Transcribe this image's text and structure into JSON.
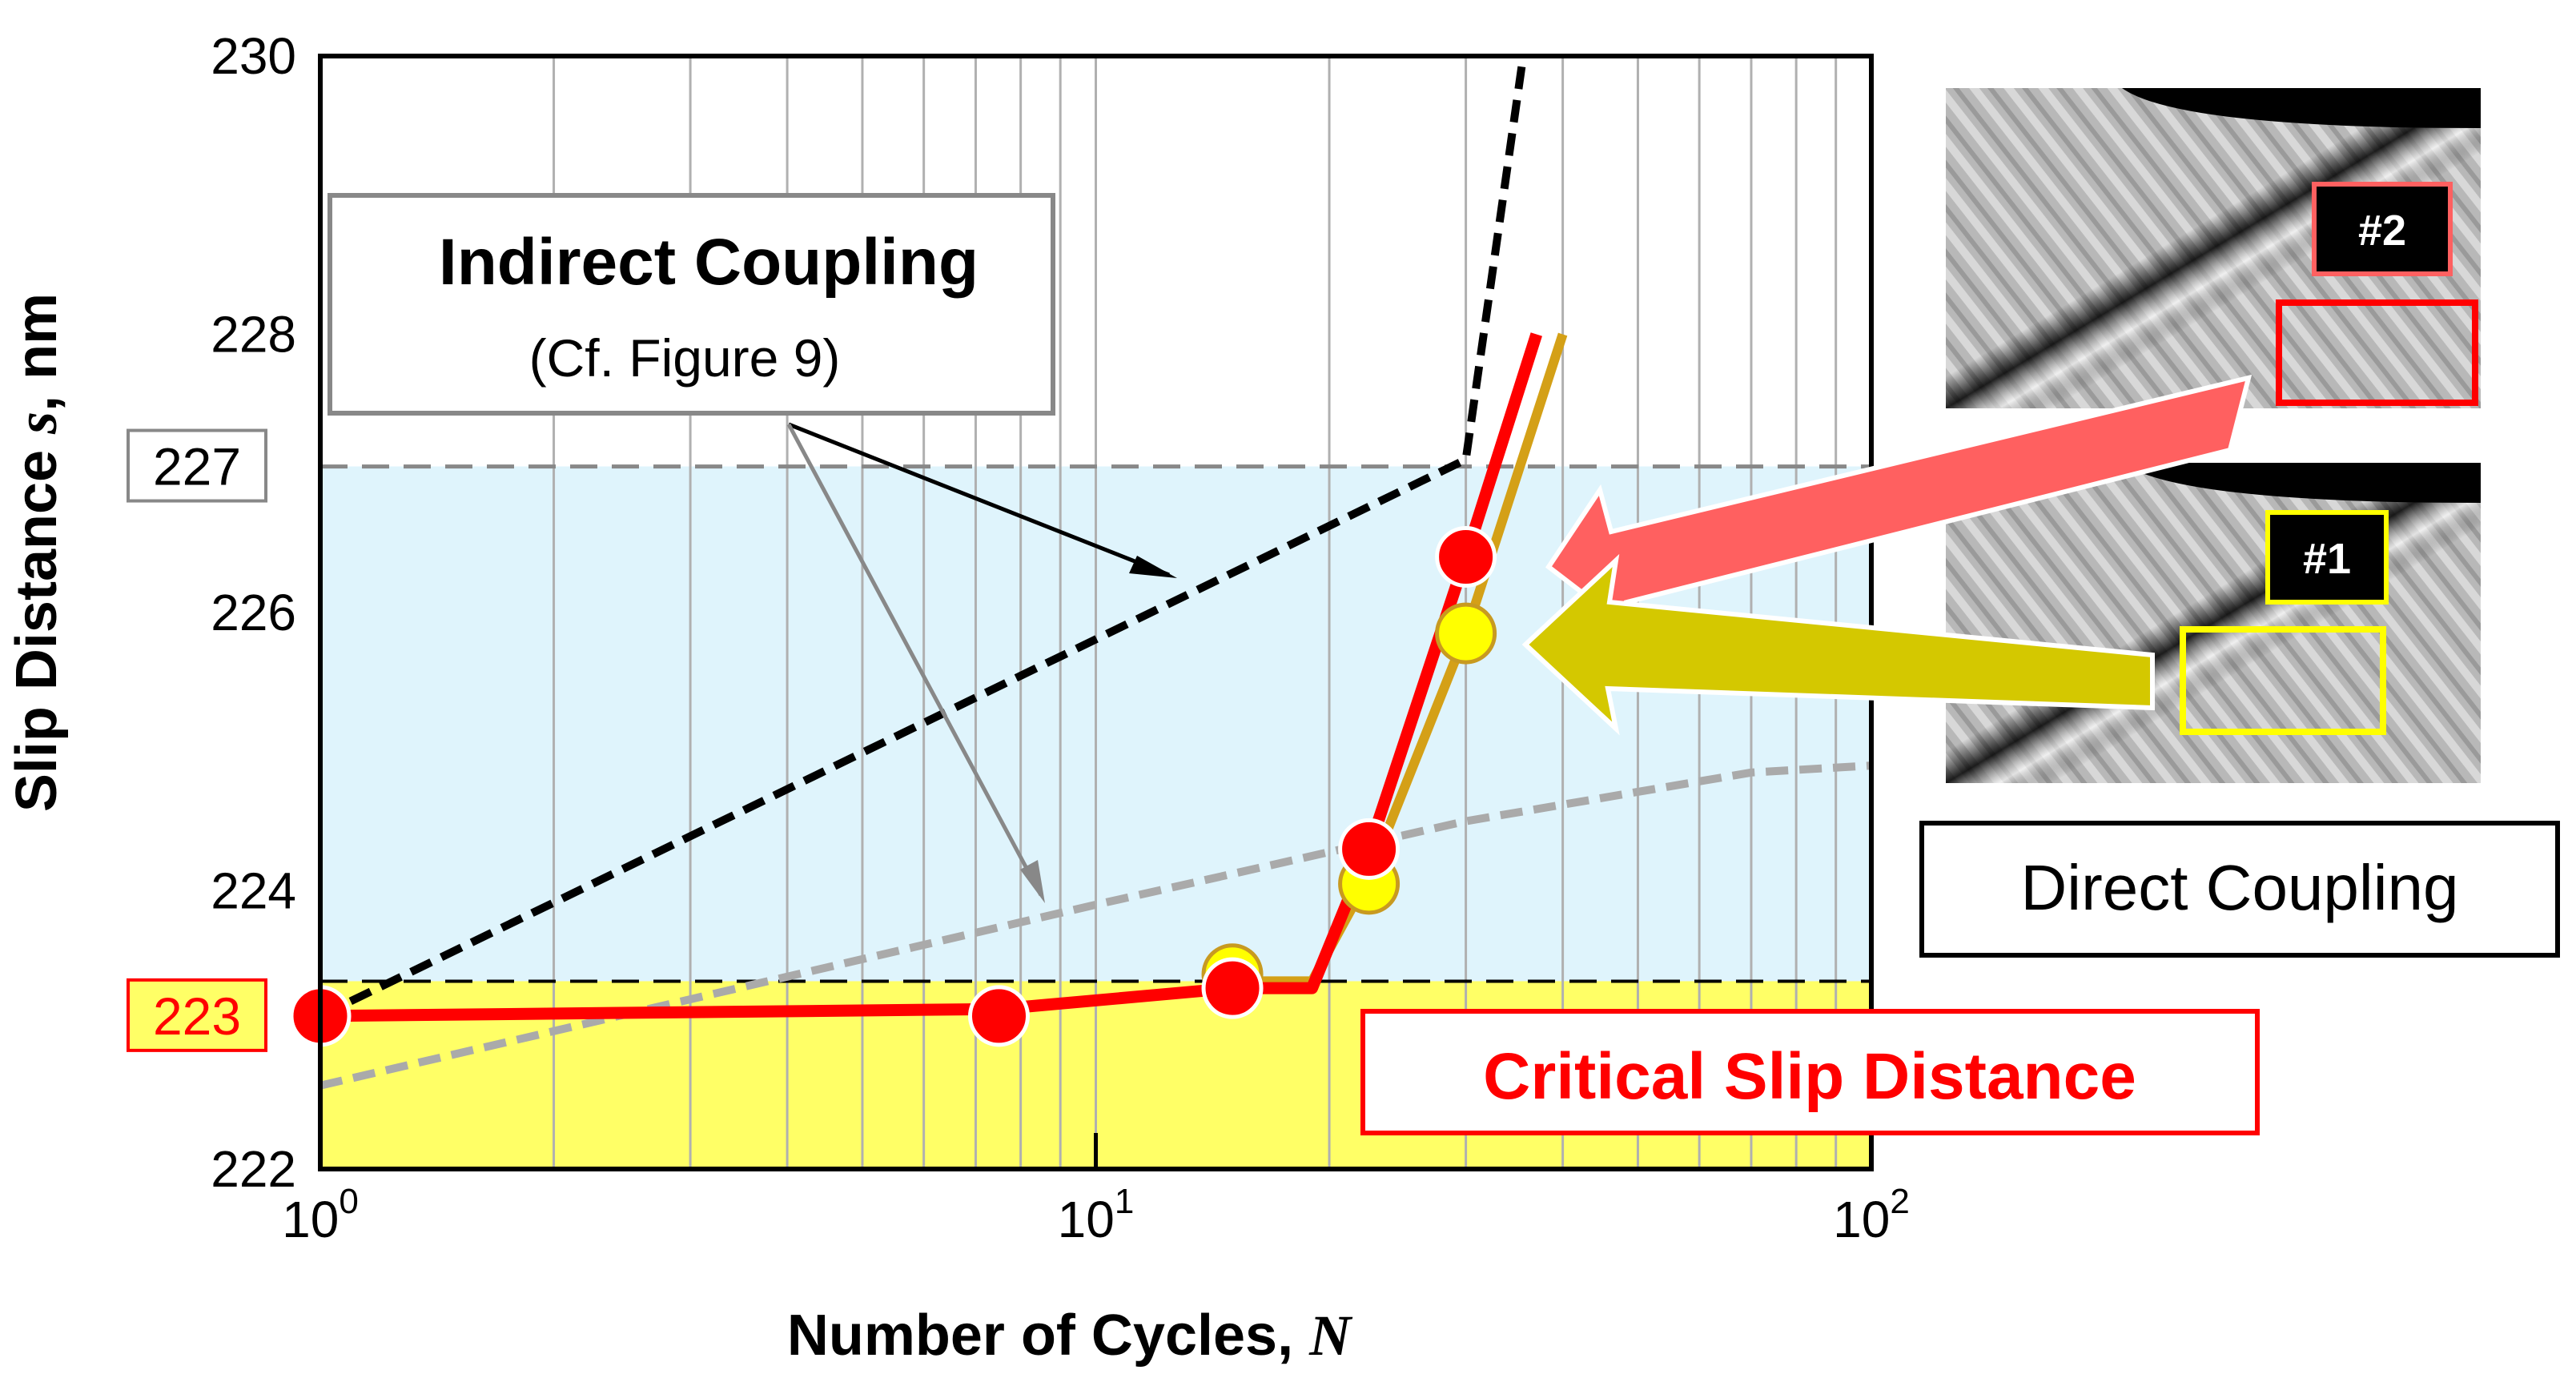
{
  "chart_data": {
    "type": "line",
    "xlabel_text": "Number of Cycles, ",
    "xlabel_var": "N",
    "ylabel_text": "Slip Distance ",
    "ylabel_var": "s",
    "ylabel_unit": ", nm",
    "x_scale": "log",
    "xlim": [
      1,
      100
    ],
    "ylim": [
      222,
      230
    ],
    "x_ticks": [
      {
        "base": "10",
        "exp": "0",
        "value": 1
      },
      {
        "base": "10",
        "exp": "1",
        "value": 10
      },
      {
        "base": "10",
        "exp": "2",
        "value": 100
      }
    ],
    "y_ticks": [
      222,
      224,
      226,
      228,
      230
    ],
    "highlight_levels": [
      {
        "label": "227",
        "value": 227.05,
        "label_color": "#000000",
        "label_bg": "#ffffff",
        "border": "#888888"
      },
      {
        "label": "223",
        "value": 223.1,
        "label_color": "#ff0000",
        "label_bg": "#ffff66",
        "border": "#ff0000"
      }
    ],
    "bands": [
      {
        "from": 223.35,
        "to": 227.05,
        "color": "#dff4fc"
      },
      {
        "from": 222,
        "to": 223.35,
        "color": "#ffff66"
      }
    ],
    "series": [
      {
        "style": "dashed-black",
        "color": "#000000",
        "x": [
          1,
          30,
          40
        ],
        "y": [
          223.1,
          227.1,
          232
        ]
      },
      {
        "style": "dashed-gray",
        "color": "#aaaaaa",
        "x": [
          1,
          10,
          30,
          70,
          100
        ],
        "y": [
          222.6,
          223.9,
          224.5,
          224.85,
          224.9
        ]
      },
      {
        "style": "solid-red",
        "color": "#ff0000",
        "x": [
          1,
          7.5,
          15,
          19,
          22.5,
          30,
          37
        ],
        "y": [
          223.1,
          223.15,
          223.3,
          223.3,
          224.3,
          226.4,
          228.0
        ]
      },
      {
        "style": "solid-orange",
        "color": "#d4a017",
        "x": [
          15,
          19,
          22.5,
          30,
          40
        ],
        "y": [
          223.35,
          223.35,
          224.1,
          225.85,
          228.0
        ]
      }
    ],
    "points_yellow": [
      {
        "x": 15,
        "y": 223.4
      },
      {
        "x": 22.5,
        "y": 224.05
      },
      {
        "x": 30,
        "y": 225.85
      }
    ],
    "points_red": [
      {
        "x": 1,
        "y": 223.1
      },
      {
        "x": 7.5,
        "y": 223.1
      },
      {
        "x": 15,
        "y": 223.3
      },
      {
        "x": 22.5,
        "y": 224.3
      },
      {
        "x": 30,
        "y": 226.4
      }
    ]
  },
  "annotations": {
    "indirect_title": "Indirect Coupling",
    "indirect_sub": "(Cf. Figure 9)",
    "critical": "Critical Slip Distance",
    "direct": "Direct Coupling",
    "tag_2": "#2",
    "tag_1": "#1"
  },
  "colors": {
    "red": "#ff0000",
    "salmon": "#ff6060",
    "olive_yellow": "#d4c800",
    "yellow_box": "#ffff00",
    "light_blue_band": "#dff4fc",
    "yellow_band": "#ffff66"
  }
}
